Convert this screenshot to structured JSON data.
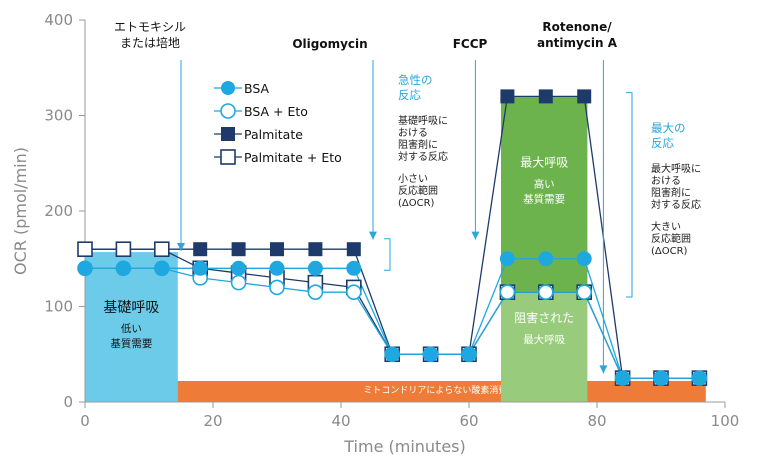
{
  "chart_data": {
    "type": "line",
    "xlabel": "Time (minutes)",
    "ylabel": "OCR (pmol/min)",
    "xlim": [
      0,
      100
    ],
    "ylim": [
      0,
      400
    ],
    "xticks": [
      0,
      20,
      40,
      60,
      80,
      100
    ],
    "yticks": [
      0,
      100,
      200,
      300,
      400
    ],
    "x": [
      0,
      6,
      12,
      18,
      24,
      30,
      36,
      42,
      48,
      54,
      60,
      66,
      72,
      78,
      84,
      90,
      96
    ],
    "series": [
      {
        "name": "BSA",
        "marker": "circle-filled",
        "color": "#1fa8e0",
        "values": [
          140,
          140,
          140,
          140,
          140,
          140,
          140,
          140,
          50,
          50,
          50,
          150,
          150,
          150,
          25,
          25,
          25
        ]
      },
      {
        "name": "BSA + Eto",
        "marker": "circle-open",
        "color": "#1fa8e0",
        "values": [
          140,
          140,
          140,
          130,
          125,
          120,
          115,
          115,
          50,
          50,
          50,
          115,
          115,
          115,
          25,
          25,
          25
        ]
      },
      {
        "name": "Palmitate",
        "marker": "square-filled",
        "color": "#1e3a6b",
        "values": [
          160,
          160,
          160,
          160,
          160,
          160,
          160,
          160,
          50,
          50,
          50,
          320,
          320,
          320,
          25,
          25,
          25
        ]
      },
      {
        "name": "Palmitate + Eto",
        "marker": "square-open",
        "color": "#1e3a6b",
        "values": [
          160,
          160,
          160,
          140,
          135,
          130,
          125,
          120,
          50,
          50,
          50,
          115,
          115,
          115,
          25,
          25,
          25
        ]
      }
    ],
    "regions": [
      {
        "label": "基礎呼吸",
        "sublabel": [
          "低い",
          "基質需要"
        ],
        "x": [
          0,
          14.5
        ],
        "y": [
          0,
          157
        ],
        "color": "#6ccbe8"
      },
      {
        "label": "最大呼吸",
        "sublabel": [
          "高い",
          "基質需要"
        ],
        "x": [
          65,
          78.5
        ],
        "y": [
          115,
          320
        ],
        "color": "#6db34d"
      },
      {
        "label": "阻害された",
        "sublabel": [
          "最大呼吸"
        ],
        "x": [
          65,
          78.5
        ],
        "y": [
          0,
          115
        ],
        "color": "#98cc7c"
      }
    ],
    "non_mito_bar": {
      "label": "ミトコンドリアによらない酸素消費",
      "x": [
        0,
        97
      ],
      "y": [
        0,
        22
      ],
      "color": "#ee7b37"
    },
    "injections": [
      {
        "label": [
          "エトモキシル",
          "または培地"
        ],
        "x": 15
      },
      {
        "label": [
          "Oligomycin"
        ],
        "x": 45
      },
      {
        "label": [
          "FCCP"
        ],
        "x": 61
      },
      {
        "label": [
          "Rotenone/",
          "antimycin A"
        ],
        "x": 81
      }
    ],
    "annotations": [
      {
        "heading": [
          "急性の",
          "反応"
        ],
        "lines": [
          "基礎呼吸に",
          "おける",
          "阻害剤に",
          "対する反応"
        ],
        "sub": [
          "小さい",
          "反応範囲",
          "(ΔOCR)"
        ]
      },
      {
        "heading": [
          "最大の",
          "反応"
        ],
        "lines": [
          "最大呼吸に",
          "おける",
          "阻害剤に",
          "対する反応"
        ],
        "sub": [
          "大きい",
          "反応範囲",
          "(ΔOCR)"
        ]
      }
    ]
  }
}
